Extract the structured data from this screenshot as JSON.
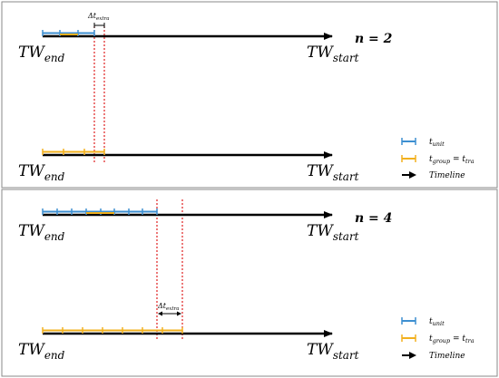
{
  "colors": {
    "unit": "#3d8fd1",
    "group": "#f2b01e",
    "timeline": "#000000",
    "window_marker": "#e02020",
    "panel_border": "#8a8a8a"
  },
  "panels": [
    {
      "n_label": "n = 2",
      "tw_end": {
        "main": "TW",
        "sub": "end"
      },
      "tw_start": {
        "main": "TW",
        "sub": "start"
      },
      "delta": {
        "symbol": "Δt",
        "sub": "extra"
      }
    },
    {
      "n_label": "n = 4",
      "tw_end": {
        "main": "TW",
        "sub": "end"
      },
      "tw_start": {
        "main": "TW",
        "sub": "start"
      },
      "delta": {
        "symbol": "Δt",
        "sub": "extra"
      }
    }
  ],
  "legend": {
    "unit": {
      "main": "t",
      "sub": "unit",
      "icon": "blue-interval-icon"
    },
    "group": {
      "main": "t",
      "sub": "group",
      "eq": " = ",
      "main2": "t",
      "sub2": "tra",
      "icon": "yellow-interval-icon"
    },
    "timeline": {
      "label": "Timeline",
      "icon": "arrow-right-icon"
    }
  }
}
